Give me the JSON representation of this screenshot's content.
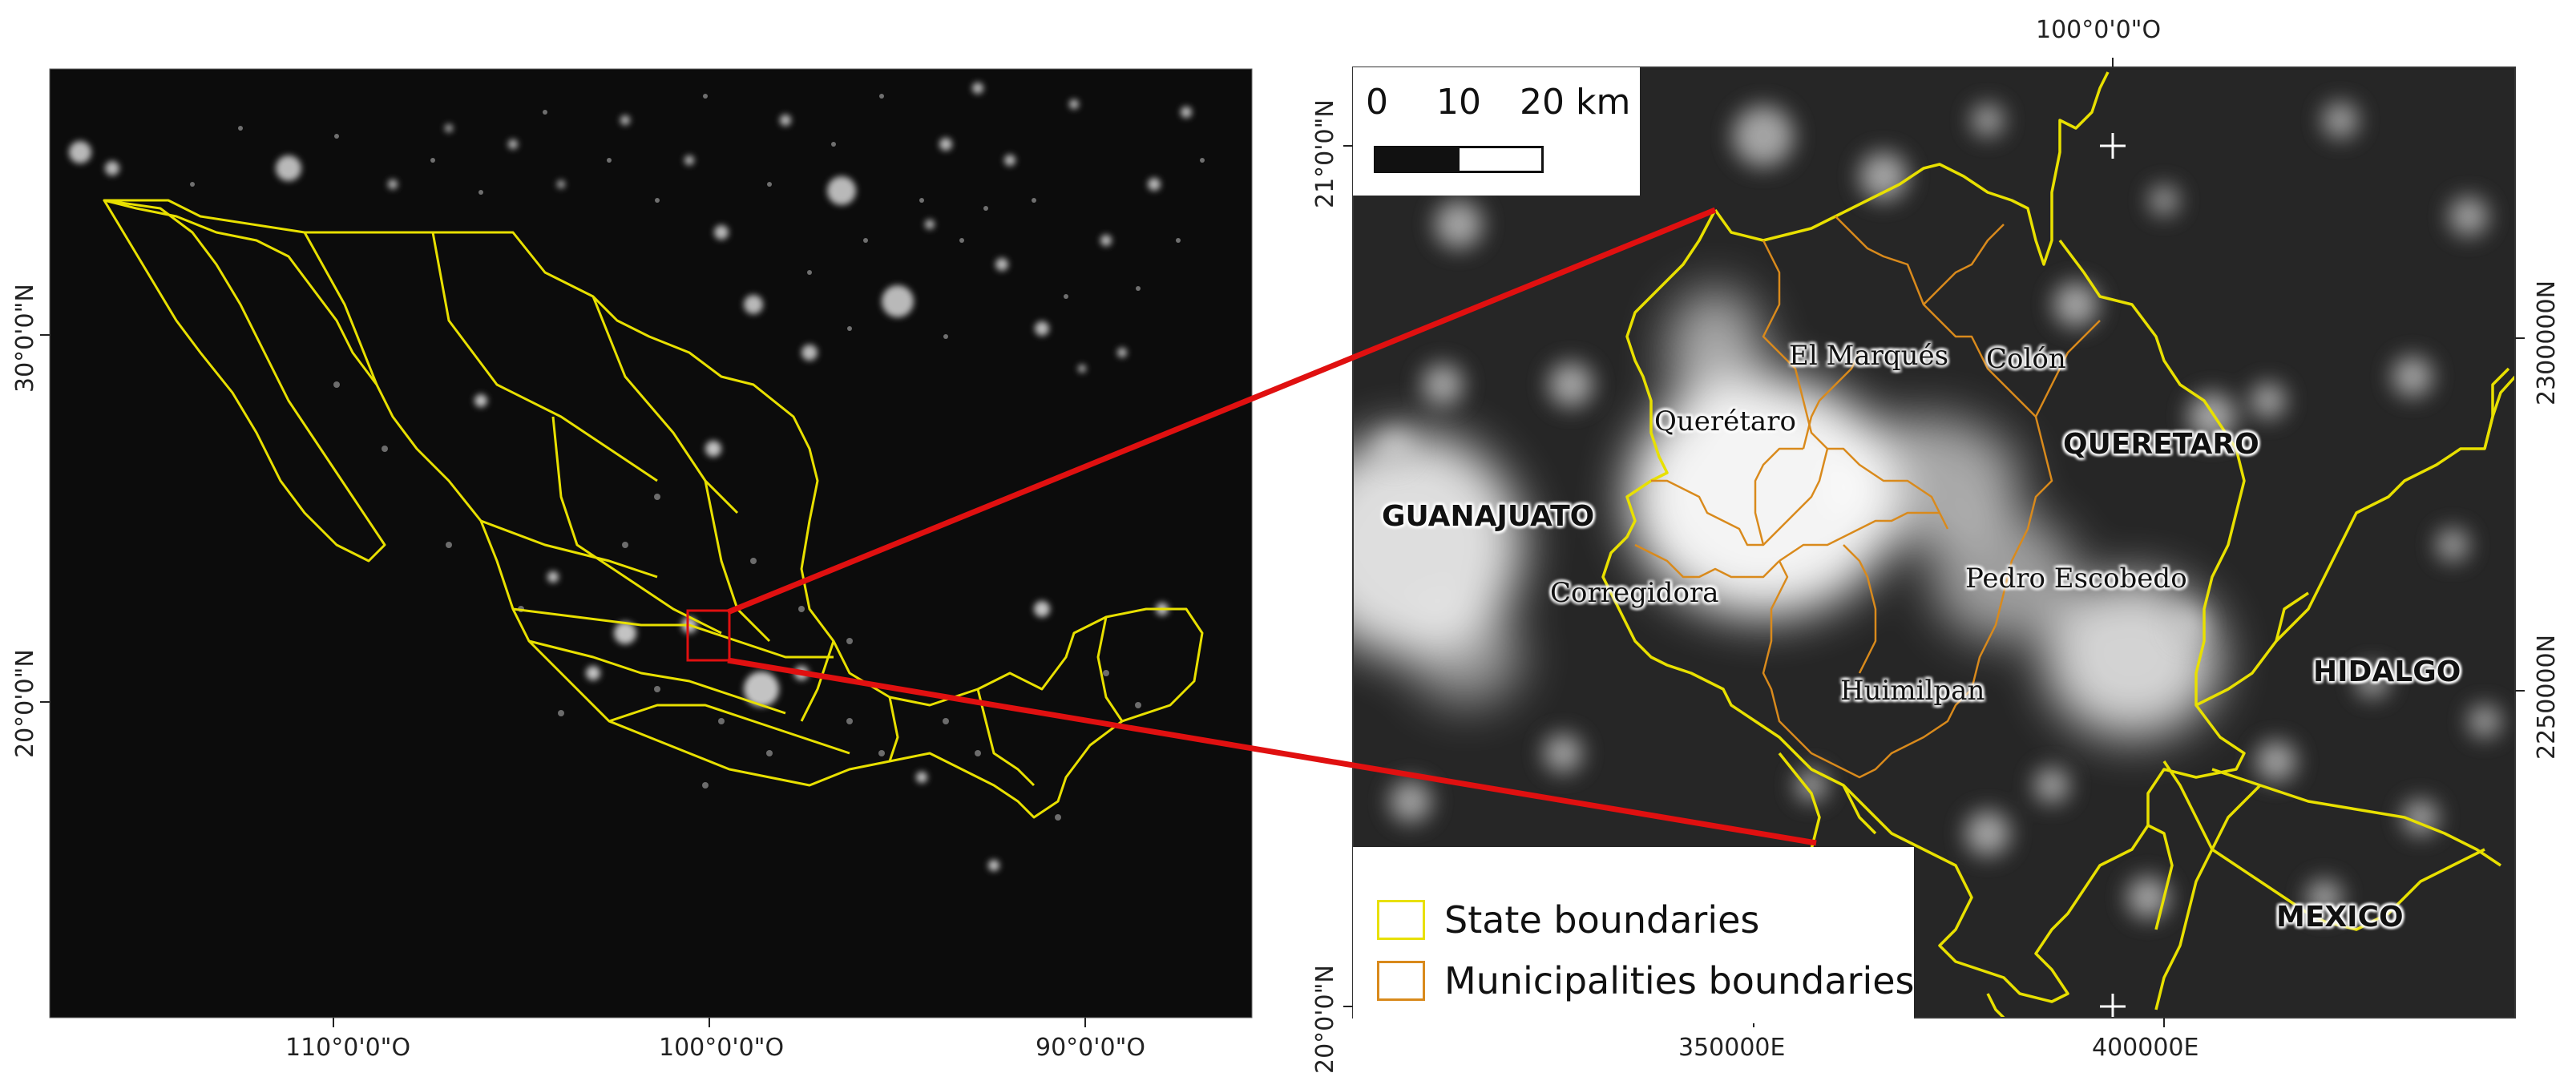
{
  "left_map": {
    "lon_ticks": [
      "110°0'0\"O",
      "100°0'0\"O",
      "90°0'0\"O"
    ],
    "lat_ticks": [
      "30°0'0\"N",
      "20°0'0\"N"
    ]
  },
  "right_map": {
    "top_lon_tick": "100°0'0\"O",
    "left_lat_ticks": [
      "21°0'0\"N",
      "20°0'0\"N"
    ],
    "bottom_ticks": [
      "350000E",
      "400000E"
    ],
    "right_ticks": [
      "2300000N",
      "2250000N"
    ],
    "scale_bar": {
      "labels": [
        "0",
        "10",
        "20 km"
      ]
    },
    "state_labels": [
      "GUANAJUATO",
      "QUERETARO",
      "HIDALGO",
      "MEXICO"
    ],
    "municipality_labels": [
      "El Marqués",
      "Colón",
      "Querétaro",
      "Corregidora",
      "Pedro Escobedo",
      "Huimilpan"
    ],
    "legend": [
      {
        "label": "State boundaries",
        "color": "#e8e000"
      },
      {
        "label": "Municipalities boundaries",
        "color": "#d98a1c"
      }
    ]
  },
  "colors": {
    "zoom_line": "#e01010",
    "state": "#e8e000",
    "municipality": "#d98a1c"
  }
}
